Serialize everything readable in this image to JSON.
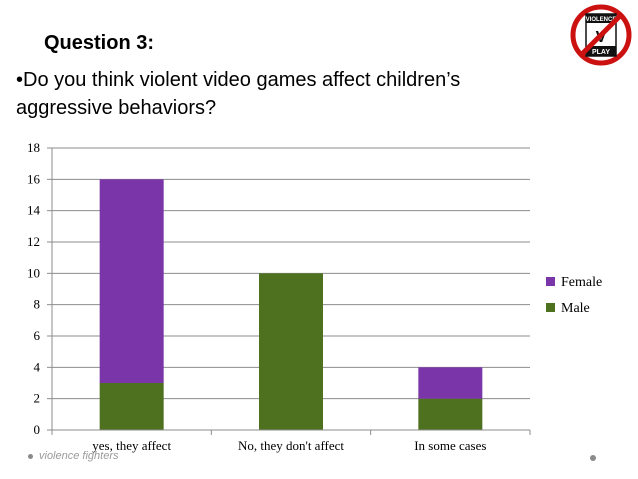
{
  "slide": {
    "heading": "Question 3:",
    "question": "•Do you think violent video games affect children’s aggressive behaviors?",
    "badge_text": "VIOLENCE",
    "badge_sub": "PLAY"
  },
  "footer": {
    "text": "violence fighters"
  },
  "colors": {
    "female": "#7a35a8",
    "male": "#4e7120",
    "grid": "#8c8c8c"
  },
  "chart_data": {
    "type": "bar",
    "stacked": true,
    "categories": [
      "yes, they affect",
      "No, they don't affect",
      "In some cases"
    ],
    "series": [
      {
        "name": "Male",
        "values": [
          3,
          10,
          2
        ]
      },
      {
        "name": "Female",
        "values": [
          13,
          0,
          2
        ]
      }
    ],
    "legend_order": [
      "Female",
      "Male"
    ],
    "legend_position": "right",
    "ylim": [
      0,
      18
    ],
    "yticks": [
      0,
      2,
      4,
      6,
      8,
      10,
      12,
      14,
      16,
      18
    ],
    "grid": true,
    "title": "",
    "xlabel": "",
    "ylabel": ""
  }
}
